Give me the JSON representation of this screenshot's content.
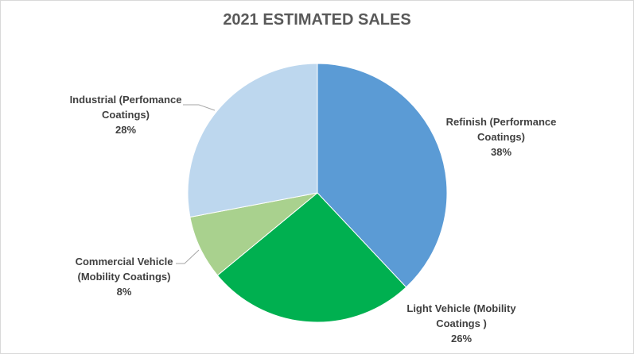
{
  "chart_data": {
    "type": "pie",
    "title": "2021 ESTIMATED SALES",
    "slices": [
      {
        "label_lines": [
          "Refinish (Performance",
          "Coatings)"
        ],
        "value": 38,
        "value_label": "38%",
        "color": "#5b9bd5"
      },
      {
        "label_lines": [
          "Light Vehicle (Mobility",
          "Coatings )"
        ],
        "value": 26,
        "value_label": "26%",
        "color": "#00b050"
      },
      {
        "label_lines": [
          "Commercial Vehicle",
          "(Mobility Coatings)"
        ],
        "value": 8,
        "value_label": "8%",
        "color": "#a9d18e"
      },
      {
        "label_lines": [
          "Industrial (Perfomance",
          "Coatings)"
        ],
        "value": 28,
        "value_label": "28%",
        "color": "#bdd7ee"
      }
    ],
    "legend": "none",
    "start_angle": "12 o'clock",
    "direction": "clockwise"
  }
}
